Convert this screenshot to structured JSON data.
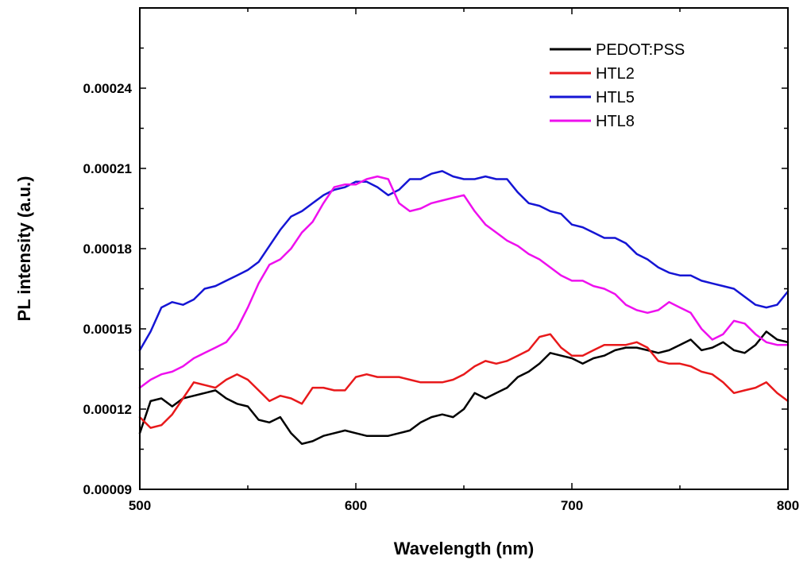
{
  "chart_data": {
    "type": "line",
    "title": "",
    "xlabel": "Wavelength (nm)",
    "ylabel": "PL intensity (a.u.)",
    "xlim": [
      500,
      800
    ],
    "ylim": [
      9e-05,
      0.00027
    ],
    "x_ticks": [
      500,
      600,
      700,
      800
    ],
    "x_tick_labels": [
      "500",
      "600",
      "700",
      "800"
    ],
    "y_ticks": [
      9e-05,
      0.00012,
      0.00015,
      0.00018,
      0.00021,
      0.00024
    ],
    "y_tick_labels": [
      "0.00009",
      "0.00012",
      "0.00015",
      "0.00018",
      "0.00021",
      "0.00024"
    ],
    "grid": false,
    "legend_position": "top-right",
    "series": [
      {
        "name": "PEDOT:PSS",
        "color": "#000000",
        "x": [
          500,
          505,
          510,
          515,
          520,
          525,
          530,
          535,
          540,
          545,
          550,
          555,
          560,
          565,
          570,
          575,
          580,
          585,
          590,
          595,
          600,
          605,
          610,
          615,
          620,
          625,
          630,
          635,
          640,
          645,
          650,
          655,
          660,
          665,
          670,
          675,
          680,
          685,
          690,
          695,
          700,
          705,
          710,
          715,
          720,
          725,
          730,
          735,
          740,
          745,
          750,
          755,
          760,
          765,
          770,
          775,
          780,
          785,
          790,
          795,
          800
        ],
        "y": [
          0.000111,
          0.000123,
          0.000124,
          0.000121,
          0.000124,
          0.000125,
          0.000126,
          0.000127,
          0.000124,
          0.000122,
          0.000121,
          0.000116,
          0.000115,
          0.000117,
          0.000111,
          0.000107,
          0.000108,
          0.00011,
          0.000111,
          0.000112,
          0.000111,
          0.00011,
          0.00011,
          0.00011,
          0.000111,
          0.000112,
          0.000115,
          0.000117,
          0.000118,
          0.000117,
          0.00012,
          0.000126,
          0.000124,
          0.000126,
          0.000128,
          0.000132,
          0.000134,
          0.000137,
          0.000141,
          0.00014,
          0.000139,
          0.000137,
          0.000139,
          0.00014,
          0.000142,
          0.000143,
          0.000143,
          0.000142,
          0.000141,
          0.000142,
          0.000144,
          0.000146,
          0.000142,
          0.000143,
          0.000145,
          0.000142,
          0.000141,
          0.000144,
          0.000149,
          0.000146,
          0.000145
        ]
      },
      {
        "name": "HTL2",
        "color": "#e8191b",
        "x": [
          500,
          505,
          510,
          515,
          520,
          525,
          530,
          535,
          540,
          545,
          550,
          555,
          560,
          565,
          570,
          575,
          580,
          585,
          590,
          595,
          600,
          605,
          610,
          615,
          620,
          625,
          630,
          635,
          640,
          645,
          650,
          655,
          660,
          665,
          670,
          675,
          680,
          685,
          690,
          695,
          700,
          705,
          710,
          715,
          720,
          725,
          730,
          735,
          740,
          745,
          750,
          755,
          760,
          765,
          770,
          775,
          780,
          785,
          790,
          795,
          800
        ],
        "y": [
          0.000117,
          0.000113,
          0.000114,
          0.000118,
          0.000124,
          0.00013,
          0.000129,
          0.000128,
          0.000131,
          0.000133,
          0.000131,
          0.000127,
          0.000123,
          0.000125,
          0.000124,
          0.000122,
          0.000128,
          0.000128,
          0.000127,
          0.000127,
          0.000132,
          0.000133,
          0.000132,
          0.000132,
          0.000132,
          0.000131,
          0.00013,
          0.00013,
          0.00013,
          0.000131,
          0.000133,
          0.000136,
          0.000138,
          0.000137,
          0.000138,
          0.00014,
          0.000142,
          0.000147,
          0.000148,
          0.000143,
          0.00014,
          0.00014,
          0.000142,
          0.000144,
          0.000144,
          0.000144,
          0.000145,
          0.000143,
          0.000138,
          0.000137,
          0.000137,
          0.000136,
          0.000134,
          0.000133,
          0.00013,
          0.000126,
          0.000127,
          0.000128,
          0.00013,
          0.000126,
          0.000123
        ]
      },
      {
        "name": "HTL5",
        "color": "#1515d4",
        "x": [
          500,
          505,
          510,
          515,
          520,
          525,
          530,
          535,
          540,
          545,
          550,
          555,
          560,
          565,
          570,
          575,
          580,
          585,
          590,
          595,
          600,
          605,
          610,
          615,
          620,
          625,
          630,
          635,
          640,
          645,
          650,
          655,
          660,
          665,
          670,
          675,
          680,
          685,
          690,
          695,
          700,
          705,
          710,
          715,
          720,
          725,
          730,
          735,
          740,
          745,
          750,
          755,
          760,
          765,
          770,
          775,
          780,
          785,
          790,
          795,
          800
        ],
        "y": [
          0.000142,
          0.000149,
          0.000158,
          0.00016,
          0.000159,
          0.000161,
          0.000165,
          0.000166,
          0.000168,
          0.00017,
          0.000172,
          0.000175,
          0.000181,
          0.000187,
          0.000192,
          0.000194,
          0.000197,
          0.0002,
          0.000202,
          0.000203,
          0.000205,
          0.000205,
          0.000203,
          0.0002,
          0.000202,
          0.000206,
          0.000206,
          0.000208,
          0.000209,
          0.000207,
          0.000206,
          0.000206,
          0.000207,
          0.000206,
          0.000206,
          0.000201,
          0.000197,
          0.000196,
          0.000194,
          0.000193,
          0.000189,
          0.000188,
          0.000186,
          0.000184,
          0.000184,
          0.000182,
          0.000178,
          0.000176,
          0.000173,
          0.000171,
          0.00017,
          0.00017,
          0.000168,
          0.000167,
          0.000166,
          0.000165,
          0.000162,
          0.000159,
          0.000158,
          0.000159,
          0.000164
        ]
      },
      {
        "name": "HTL8",
        "color": "#ee10ee",
        "x": [
          500,
          505,
          510,
          515,
          520,
          525,
          530,
          535,
          540,
          545,
          550,
          555,
          560,
          565,
          570,
          575,
          580,
          585,
          590,
          595,
          600,
          605,
          610,
          615,
          620,
          625,
          630,
          635,
          640,
          645,
          650,
          655,
          660,
          665,
          670,
          675,
          680,
          685,
          690,
          695,
          700,
          705,
          710,
          715,
          720,
          725,
          730,
          735,
          740,
          745,
          750,
          755,
          760,
          765,
          770,
          775,
          780,
          785,
          790,
          795,
          800
        ],
        "y": [
          0.000128,
          0.000131,
          0.000133,
          0.000134,
          0.000136,
          0.000139,
          0.000141,
          0.000143,
          0.000145,
          0.00015,
          0.000158,
          0.000167,
          0.000174,
          0.000176,
          0.00018,
          0.000186,
          0.00019,
          0.000197,
          0.000203,
          0.000204,
          0.000204,
          0.000206,
          0.000207,
          0.000206,
          0.000197,
          0.000194,
          0.000195,
          0.000197,
          0.000198,
          0.000199,
          0.0002,
          0.000194,
          0.000189,
          0.000186,
          0.000183,
          0.000181,
          0.000178,
          0.000176,
          0.000173,
          0.00017,
          0.000168,
          0.000168,
          0.000166,
          0.000165,
          0.000163,
          0.000159,
          0.000157,
          0.000156,
          0.000157,
          0.00016,
          0.000158,
          0.000156,
          0.00015,
          0.000146,
          0.000148,
          0.000153,
          0.000152,
          0.000148,
          0.000145,
          0.000144,
          0.000144
        ]
      }
    ]
  }
}
